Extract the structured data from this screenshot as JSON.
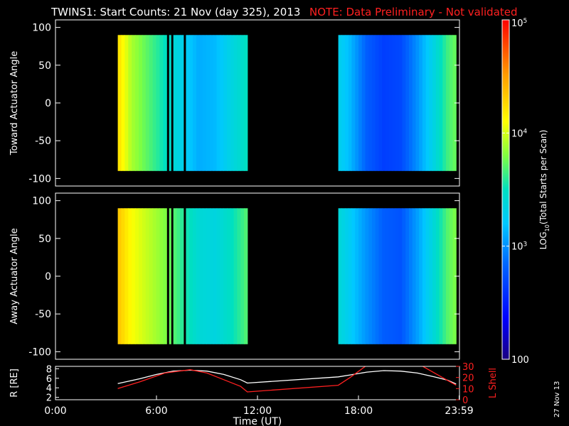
{
  "title": {
    "main": "TWINS1: Start Counts: 21 Nov (day 325), 2013",
    "note": "NOTE: Data Preliminary - Not validated"
  },
  "date_stamp": "27 Nov 13",
  "colors": {
    "background": "#000000",
    "axes": "#ffffff",
    "note": "#ff2020",
    "lshell": "#ff2020",
    "r_line": "#ffffff"
  },
  "chart_data": [
    {
      "type": "heatmap",
      "id": "toward",
      "ylabel": "Toward Actuator Angle",
      "ylim": [
        -110,
        110
      ],
      "yticks": [
        -100,
        -50,
        0,
        50,
        100
      ],
      "xlim": [
        0,
        24
      ],
      "angle_range": [
        -90,
        90
      ],
      "coverage_hours": [
        [
          3.7,
          6.6
        ],
        [
          6.75,
          6.85
        ],
        [
          7.0,
          7.6
        ],
        [
          7.75,
          11.4
        ],
        [
          16.8,
          23.8
        ]
      ],
      "colorscale": "LOG10 rainbow, 100 to 100000",
      "profile": [
        {
          "t": 3.7,
          "log": 4.25
        },
        {
          "t": 4.5,
          "log": 3.9
        },
        {
          "t": 5.5,
          "log": 3.7
        },
        {
          "t": 6.5,
          "log": 3.5
        },
        {
          "t": 7.5,
          "log": 3.3
        },
        {
          "t": 8.5,
          "log": 3.1
        },
        {
          "t": 9.5,
          "log": 3.15
        },
        {
          "t": 10.5,
          "log": 3.35
        },
        {
          "t": 11.4,
          "log": 3.5
        },
        {
          "t": 16.8,
          "log": 3.3
        },
        {
          "t": 17.5,
          "log": 3.15
        },
        {
          "t": 18.5,
          "log": 2.8
        },
        {
          "t": 19.5,
          "log": 2.65
        },
        {
          "t": 20.5,
          "log": 2.7
        },
        {
          "t": 21.5,
          "log": 3.0
        },
        {
          "t": 22.5,
          "log": 3.35
        },
        {
          "t": 23.3,
          "log": 3.65
        },
        {
          "t": 23.8,
          "log": 3.75
        }
      ]
    },
    {
      "type": "heatmap",
      "id": "away",
      "ylabel": "Away Actuator Angle",
      "ylim": [
        -110,
        110
      ],
      "yticks": [
        -100,
        -50,
        0,
        50,
        100
      ],
      "xlim": [
        0,
        24
      ],
      "angle_range": [
        -90,
        90
      ],
      "coverage_hours": [
        [
          3.7,
          6.6
        ],
        [
          6.75,
          6.85
        ],
        [
          7.0,
          7.6
        ],
        [
          7.75,
          11.4
        ],
        [
          16.8,
          23.8
        ]
      ],
      "colorscale": "LOG10 rainbow, 100 to 100000",
      "profile": [
        {
          "t": 3.7,
          "log": 4.35
        },
        {
          "t": 4.5,
          "log": 4.1
        },
        {
          "t": 5.5,
          "log": 3.95
        },
        {
          "t": 6.5,
          "log": 3.8
        },
        {
          "t": 7.5,
          "log": 3.6
        },
        {
          "t": 8.5,
          "log": 3.4
        },
        {
          "t": 9.5,
          "log": 3.35
        },
        {
          "t": 10.5,
          "log": 3.5
        },
        {
          "t": 11.4,
          "log": 3.7
        },
        {
          "t": 16.8,
          "log": 3.4
        },
        {
          "t": 17.5,
          "log": 3.25
        },
        {
          "t": 18.5,
          "log": 3.0
        },
        {
          "t": 19.5,
          "log": 2.8
        },
        {
          "t": 20.5,
          "log": 2.75
        },
        {
          "t": 21.5,
          "log": 3.05
        },
        {
          "t": 22.5,
          "log": 3.4
        },
        {
          "t": 23.3,
          "log": 3.7
        },
        {
          "t": 23.8,
          "log": 3.8
        }
      ]
    },
    {
      "type": "line",
      "id": "orbit",
      "xlabel": "Time (UT)",
      "xlim": [
        0,
        24
      ],
      "xticks": [
        0,
        6,
        12,
        18,
        23.98
      ],
      "xtick_labels": [
        "0:00",
        "6:00",
        "12:00",
        "18:00",
        "23:59"
      ],
      "ylabel_left": "R [RE]",
      "ylim_left": [
        1.5,
        8.5
      ],
      "yticks_left": [
        2,
        4,
        6,
        8
      ],
      "ylabel_right": "L Shell",
      "ylim_right": [
        0,
        30
      ],
      "yticks_right": [
        0,
        10,
        20,
        30
      ],
      "series": [
        {
          "axis": "left",
          "x": [
            3.7,
            5,
            6,
            7,
            8,
            9,
            10,
            11,
            11.4,
            16.8,
            17.5,
            18.5,
            19.5,
            20.5,
            21.5,
            22.5,
            23.3,
            23.8
          ],
          "y": [
            4.9,
            5.9,
            6.8,
            7.5,
            7.7,
            7.5,
            6.8,
            5.7,
            5.0,
            6.3,
            6.7,
            7.3,
            7.6,
            7.5,
            7.1,
            6.3,
            5.6,
            4.8
          ]
        },
        {
          "axis": "right",
          "x": [
            3.7,
            5,
            6.5,
            8,
            9,
            10,
            11,
            11.4,
            16.8,
            17.5,
            18.5,
            21.7,
            23.8
          ],
          "y": [
            10,
            16,
            24,
            27,
            24,
            18,
            12,
            7,
            13,
            20,
            31,
            31,
            13
          ]
        }
      ]
    }
  ],
  "colorbar": {
    "label": "LOG10(Total Starts per Scan)",
    "label_parts": {
      "pre": "LOG",
      "sub": "10",
      "post": "(Total Starts per Scan)"
    },
    "range_log": [
      2,
      5
    ],
    "ticks": [
      {
        "log": 2,
        "text": "100",
        "base": "",
        "exp": ""
      },
      {
        "log": 3,
        "text": "",
        "base": "10",
        "exp": "3"
      },
      {
        "log": 4,
        "text": "",
        "base": "10",
        "exp": "4"
      },
      {
        "log": 5,
        "text": "",
        "base": "10",
        "exp": "5"
      }
    ]
  }
}
